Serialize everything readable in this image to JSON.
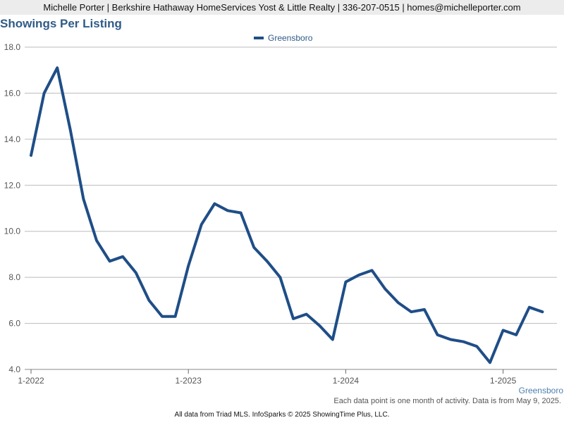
{
  "header": {
    "contact_line": "Michelle Porter | Berkshire Hathaway HomeServices Yost & Little Realty | 336-207-0515 | homes@michelleporter.com"
  },
  "footer": {
    "note": "Each data point is one month of activity. Data is from May 9, 2025.",
    "credit": "All data from Triad MLS. InfoSparks © 2025 ShowingTime Plus, LLC."
  },
  "colors": {
    "series": "#1f4e87",
    "title": "#2f5b86",
    "grid": "#bbbbbb",
    "region_label": "#4f7fae"
  },
  "chart_data": {
    "type": "line",
    "title": "Showings Per Listing",
    "xlabel": "",
    "ylabel": "",
    "ylim": [
      4.0,
      18.0
    ],
    "yticks": [
      "4.0",
      "6.0",
      "8.0",
      "10.0",
      "12.0",
      "14.0",
      "16.0",
      "18.0"
    ],
    "xticks": [
      "1-2022",
      "1-2023",
      "1-2024",
      "1-2025"
    ],
    "x_start": "1-2022",
    "x_end": "4-2025",
    "legend_position": "top-center",
    "grid": true,
    "region_label": "Greensboro",
    "series": [
      {
        "name": "Greensboro",
        "x": [
          "1-2022",
          "2-2022",
          "3-2022",
          "4-2022",
          "5-2022",
          "6-2022",
          "7-2022",
          "8-2022",
          "9-2022",
          "10-2022",
          "11-2022",
          "12-2022",
          "1-2023",
          "2-2023",
          "3-2023",
          "4-2023",
          "5-2023",
          "6-2023",
          "7-2023",
          "8-2023",
          "9-2023",
          "10-2023",
          "11-2023",
          "12-2023",
          "1-2024",
          "2-2024",
          "3-2024",
          "4-2024",
          "5-2024",
          "6-2024",
          "7-2024",
          "8-2024",
          "9-2024",
          "10-2024",
          "11-2024",
          "12-2024",
          "1-2025",
          "2-2025",
          "3-2025",
          "4-2025"
        ],
        "values": [
          13.3,
          16.0,
          17.1,
          14.4,
          11.4,
          9.6,
          8.7,
          8.9,
          8.2,
          7.0,
          6.3,
          6.3,
          8.5,
          10.3,
          11.2,
          10.9,
          10.8,
          9.3,
          8.7,
          8.0,
          6.2,
          6.4,
          5.9,
          5.3,
          7.8,
          8.1,
          8.3,
          7.5,
          6.9,
          6.5,
          6.6,
          5.5,
          5.3,
          5.2,
          5.0,
          4.3,
          5.7,
          5.5,
          6.7,
          6.5
        ]
      }
    ]
  }
}
